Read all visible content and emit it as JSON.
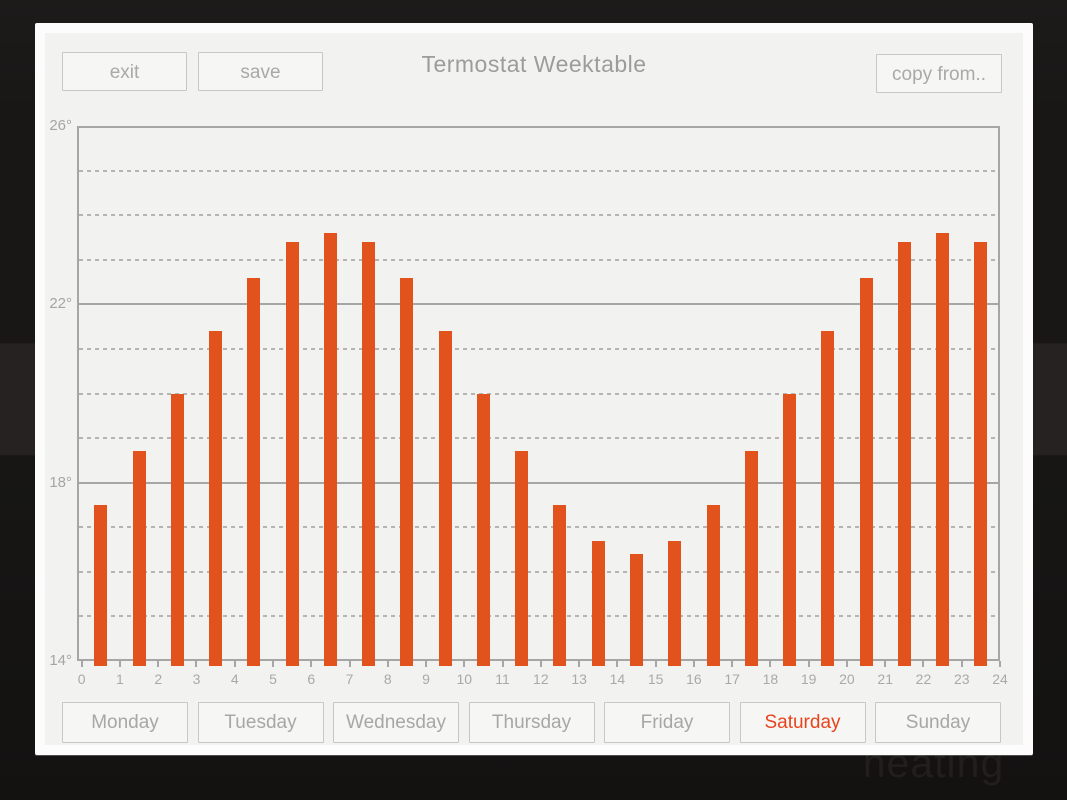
{
  "window": {
    "title": "Termostat Weektable",
    "exit_label": "exit",
    "save_label": "save",
    "copy_from_label": "copy from.."
  },
  "background": {
    "watermark_text": "heating"
  },
  "chart_data": {
    "type": "bar",
    "title": "Termostat Weektable",
    "x": [
      0,
      1,
      2,
      3,
      4,
      5,
      6,
      7,
      8,
      9,
      10,
      11,
      12,
      13,
      14,
      15,
      16,
      17,
      18,
      19,
      20,
      21,
      22,
      23
    ],
    "values": [
      17.5,
      18.7,
      20.0,
      21.4,
      22.6,
      23.4,
      23.6,
      23.4,
      22.6,
      21.4,
      20.0,
      18.7,
      17.5,
      16.7,
      16.4,
      16.7,
      17.5,
      18.7,
      20.0,
      21.4,
      22.6,
      23.4,
      23.6,
      23.4
    ],
    "xlim": [
      0,
      24
    ],
    "ylim": [
      14,
      26
    ],
    "x_tick_labels": [
      "0",
      "1",
      "2",
      "3",
      "4",
      "5",
      "6",
      "7",
      "8",
      "9",
      "10",
      "11",
      "12",
      "13",
      "14",
      "15",
      "16",
      "17",
      "18",
      "19",
      "20",
      "21",
      "22",
      "23",
      "24"
    ],
    "y_tick_labels": [
      {
        "value": 26,
        "label": "26°"
      },
      {
        "value": 22,
        "label": "22°"
      },
      {
        "value": 18,
        "label": "18°"
      },
      {
        "value": 14,
        "label": "14°"
      }
    ],
    "solid_gridlines": [
      18,
      22
    ],
    "dashed_gridlines": [
      15,
      16,
      17,
      19,
      20,
      21,
      23,
      24,
      25
    ],
    "grid": true,
    "legend": false,
    "bar_color": "#e2521c"
  },
  "days": {
    "selected": "Saturday",
    "selected_color": "#e8441d",
    "items": [
      {
        "label": "Monday",
        "selected": false
      },
      {
        "label": "Tuesday",
        "selected": false
      },
      {
        "label": "Wednesday",
        "selected": false
      },
      {
        "label": "Thursday",
        "selected": false
      },
      {
        "label": "Friday",
        "selected": false
      },
      {
        "label": "Saturday",
        "selected": true
      },
      {
        "label": "Sunday",
        "selected": false
      }
    ]
  }
}
